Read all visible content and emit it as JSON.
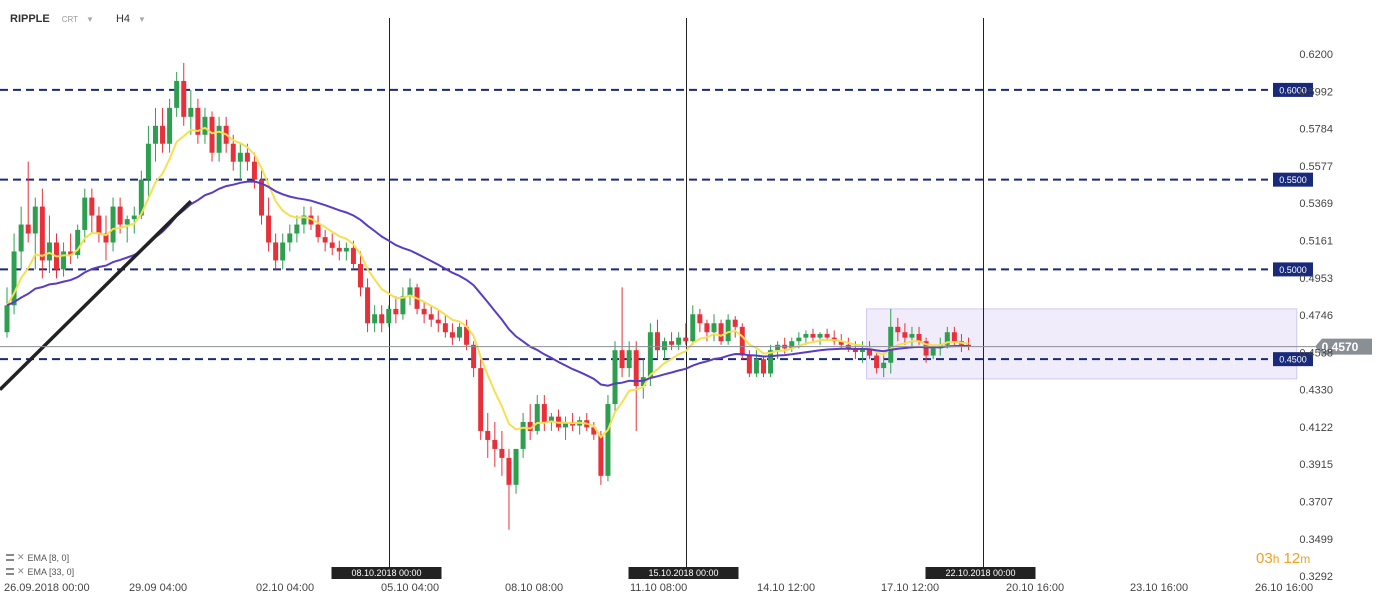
{
  "header": {
    "symbol": "RIPPLE",
    "chart_type": "CRT",
    "timeframe": "H4"
  },
  "indicators": [
    {
      "label": "EMA [8, 0]",
      "color": "#f5e052"
    },
    {
      "label": "EMA [33, 0]",
      "color": "#5b3cc4"
    }
  ],
  "timer": {
    "hours": "03",
    "h_unit": "h",
    "minutes": "12",
    "m_unit": "m"
  },
  "colors": {
    "bull": "#2e9e4f",
    "bear": "#e8303a",
    "level": "#1a2a7a",
    "price_tag": "#8a8f95",
    "consolidation_box": "#e6e0f7"
  },
  "chart_data": {
    "type": "candlestick",
    "instrument": "RIPPLE",
    "timeframe": "H4",
    "ylim": [
      0.3292,
      0.63
    ],
    "y_ticks": [
      "0.6200",
      "0.5992",
      "0.5784",
      "0.5577",
      "0.5369",
      "0.5161",
      "0.4953",
      "0.4746",
      "0.4538",
      "0.4330",
      "0.4122",
      "0.3915",
      "0.3707",
      "0.3499",
      "0.3292"
    ],
    "x_ticks": [
      "26.09.2018  00:00",
      "29.09  04:00",
      "02.10  04:00",
      "05.10  04:00",
      "08.10  08:00",
      "11.10  08:00",
      "14.10  12:00",
      "17.10  12:00",
      "20.10  16:00",
      "23.10  16:00",
      "26.10  16:00"
    ],
    "levels": [
      {
        "label": "0.6000",
        "value": 0.6
      },
      {
        "label": "0.5500",
        "value": 0.55
      },
      {
        "label": "0.5000",
        "value": 0.5
      },
      {
        "label": "0.4500",
        "value": 0.45
      }
    ],
    "current_price": {
      "label": "0.4570",
      "value": 0.457
    },
    "vertical_markers": [
      {
        "label": "08.10.2018 00:00",
        "index": 54
      },
      {
        "label": "15.10.2018 00:00",
        "index": 96
      },
      {
        "label": "22.10.2018 00:00",
        "index": 138
      }
    ],
    "trendline": [
      {
        "index": -1,
        "value": 0.433
      },
      {
        "index": 26,
        "value": 0.538
      }
    ],
    "consolidation_box": {
      "from_index": 122,
      "to_index": 182,
      "low": 0.439,
      "high": 0.478
    },
    "ohlc": [
      [
        0.465,
        0.49,
        0.462,
        0.48
      ],
      [
        0.48,
        0.52,
        0.475,
        0.51
      ],
      [
        0.51,
        0.535,
        0.5,
        0.525
      ],
      [
        0.525,
        0.56,
        0.515,
        0.52
      ],
      [
        0.52,
        0.54,
        0.5,
        0.535
      ],
      [
        0.535,
        0.545,
        0.495,
        0.505
      ],
      [
        0.505,
        0.53,
        0.498,
        0.515
      ],
      [
        0.515,
        0.52,
        0.495,
        0.5
      ],
      [
        0.5,
        0.515,
        0.496,
        0.51
      ],
      [
        0.51,
        0.52,
        0.503,
        0.508
      ],
      [
        0.508,
        0.525,
        0.506,
        0.522
      ],
      [
        0.522,
        0.545,
        0.515,
        0.54
      ],
      [
        0.54,
        0.545,
        0.52,
        0.53
      ],
      [
        0.53,
        0.535,
        0.515,
        0.52
      ],
      [
        0.52,
        0.53,
        0.505,
        0.515
      ],
      [
        0.515,
        0.54,
        0.51,
        0.535
      ],
      [
        0.535,
        0.54,
        0.52,
        0.525
      ],
      [
        0.525,
        0.53,
        0.515,
        0.528
      ],
      [
        0.528,
        0.535,
        0.52,
        0.53
      ],
      [
        0.53,
        0.555,
        0.528,
        0.55
      ],
      [
        0.55,
        0.58,
        0.54,
        0.57
      ],
      [
        0.57,
        0.59,
        0.56,
        0.58
      ],
      [
        0.58,
        0.59,
        0.565,
        0.57
      ],
      [
        0.57,
        0.595,
        0.565,
        0.59
      ],
      [
        0.59,
        0.61,
        0.585,
        0.605
      ],
      [
        0.605,
        0.615,
        0.58,
        0.585
      ],
      [
        0.585,
        0.6,
        0.575,
        0.59
      ],
      [
        0.59,
        0.595,
        0.57,
        0.575
      ],
      [
        0.575,
        0.59,
        0.57,
        0.585
      ],
      [
        0.585,
        0.588,
        0.56,
        0.565
      ],
      [
        0.565,
        0.585,
        0.56,
        0.58
      ],
      [
        0.58,
        0.585,
        0.565,
        0.57
      ],
      [
        0.57,
        0.575,
        0.555,
        0.56
      ],
      [
        0.56,
        0.57,
        0.55,
        0.565
      ],
      [
        0.565,
        0.57,
        0.555,
        0.56
      ],
      [
        0.56,
        0.565,
        0.545,
        0.55
      ],
      [
        0.55,
        0.555,
        0.525,
        0.53
      ],
      [
        0.53,
        0.54,
        0.51,
        0.515
      ],
      [
        0.515,
        0.52,
        0.5,
        0.505
      ],
      [
        0.505,
        0.52,
        0.5,
        0.515
      ],
      [
        0.515,
        0.525,
        0.51,
        0.52
      ],
      [
        0.52,
        0.53,
        0.515,
        0.525
      ],
      [
        0.525,
        0.535,
        0.52,
        0.53
      ],
      [
        0.53,
        0.535,
        0.522,
        0.525
      ],
      [
        0.525,
        0.53,
        0.515,
        0.518
      ],
      [
        0.518,
        0.522,
        0.51,
        0.515
      ],
      [
        0.515,
        0.52,
        0.508,
        0.512
      ],
      [
        0.512,
        0.516,
        0.505,
        0.51
      ],
      [
        0.51,
        0.515,
        0.505,
        0.512
      ],
      [
        0.512,
        0.516,
        0.5,
        0.503
      ],
      [
        0.503,
        0.51,
        0.485,
        0.49
      ],
      [
        0.49,
        0.495,
        0.465,
        0.47
      ],
      [
        0.47,
        0.48,
        0.465,
        0.475
      ],
      [
        0.475,
        0.48,
        0.465,
        0.47
      ],
      [
        0.47,
        0.48,
        0.468,
        0.478
      ],
      [
        0.478,
        0.485,
        0.47,
        0.475
      ],
      [
        0.475,
        0.49,
        0.472,
        0.485
      ],
      [
        0.485,
        0.495,
        0.48,
        0.49
      ],
      [
        0.49,
        0.492,
        0.475,
        0.478
      ],
      [
        0.478,
        0.482,
        0.47,
        0.475
      ],
      [
        0.475,
        0.48,
        0.468,
        0.472
      ],
      [
        0.472,
        0.478,
        0.465,
        0.47
      ],
      [
        0.47,
        0.475,
        0.462,
        0.465
      ],
      [
        0.465,
        0.47,
        0.458,
        0.462
      ],
      [
        0.462,
        0.47,
        0.46,
        0.468
      ],
      [
        0.468,
        0.472,
        0.455,
        0.458
      ],
      [
        0.458,
        0.46,
        0.44,
        0.445
      ],
      [
        0.445,
        0.45,
        0.405,
        0.41
      ],
      [
        0.41,
        0.42,
        0.395,
        0.405
      ],
      [
        0.405,
        0.415,
        0.39,
        0.4
      ],
      [
        0.4,
        0.41,
        0.385,
        0.395
      ],
      [
        0.395,
        0.4,
        0.355,
        0.38
      ],
      [
        0.38,
        0.4,
        0.375,
        0.4
      ],
      [
        0.4,
        0.42,
        0.395,
        0.415
      ],
      [
        0.415,
        0.425,
        0.405,
        0.41
      ],
      [
        0.41,
        0.43,
        0.408,
        0.425
      ],
      [
        0.425,
        0.43,
        0.41,
        0.415
      ],
      [
        0.415,
        0.42,
        0.41,
        0.418
      ],
      [
        0.418,
        0.422,
        0.41,
        0.412
      ],
      [
        0.412,
        0.418,
        0.405,
        0.415
      ],
      [
        0.415,
        0.42,
        0.41,
        0.413
      ],
      [
        0.413,
        0.418,
        0.408,
        0.416
      ],
      [
        0.416,
        0.42,
        0.41,
        0.412
      ],
      [
        0.412,
        0.415,
        0.405,
        0.408
      ],
      [
        0.408,
        0.41,
        0.38,
        0.385
      ],
      [
        0.385,
        0.43,
        0.382,
        0.425
      ],
      [
        0.425,
        0.46,
        0.42,
        0.455
      ],
      [
        0.455,
        0.49,
        0.44,
        0.445
      ],
      [
        0.445,
        0.46,
        0.44,
        0.455
      ],
      [
        0.455,
        0.46,
        0.41,
        0.435
      ],
      [
        0.435,
        0.45,
        0.428,
        0.44
      ],
      [
        0.44,
        0.47,
        0.435,
        0.465
      ],
      [
        0.465,
        0.472,
        0.45,
        0.455
      ],
      [
        0.455,
        0.462,
        0.45,
        0.46
      ],
      [
        0.46,
        0.465,
        0.455,
        0.458
      ],
      [
        0.458,
        0.465,
        0.455,
        0.462
      ],
      [
        0.462,
        0.47,
        0.458,
        0.46
      ],
      [
        0.46,
        0.48,
        0.458,
        0.475
      ],
      [
        0.475,
        0.478,
        0.465,
        0.47
      ],
      [
        0.47,
        0.472,
        0.46,
        0.465
      ],
      [
        0.465,
        0.475,
        0.46,
        0.47
      ],
      [
        0.47,
        0.472,
        0.458,
        0.46
      ],
      [
        0.46,
        0.475,
        0.458,
        0.472
      ],
      [
        0.472,
        0.474,
        0.462,
        0.468
      ],
      [
        0.468,
        0.47,
        0.45,
        0.452
      ],
      [
        0.452,
        0.455,
        0.44,
        0.442
      ],
      [
        0.442,
        0.455,
        0.44,
        0.45
      ],
      [
        0.45,
        0.452,
        0.44,
        0.442
      ],
      [
        0.442,
        0.458,
        0.44,
        0.455
      ],
      [
        0.455,
        0.46,
        0.45,
        0.458
      ],
      [
        0.458,
        0.462,
        0.453,
        0.456
      ],
      [
        0.456,
        0.462,
        0.454,
        0.46
      ],
      [
        0.46,
        0.465,
        0.456,
        0.462
      ],
      [
        0.462,
        0.466,
        0.458,
        0.464
      ],
      [
        0.464,
        0.467,
        0.46,
        0.462
      ],
      [
        0.462,
        0.465,
        0.458,
        0.464
      ],
      [
        0.464,
        0.467,
        0.46,
        0.462
      ],
      [
        0.462,
        0.466,
        0.458,
        0.46
      ],
      [
        0.46,
        0.464,
        0.456,
        0.458
      ],
      [
        0.458,
        0.462,
        0.454,
        0.456
      ],
      [
        0.456,
        0.46,
        0.45,
        0.454
      ],
      [
        0.454,
        0.46,
        0.448,
        0.456
      ],
      [
        0.456,
        0.46,
        0.45,
        0.452
      ],
      [
        0.452,
        0.455,
        0.442,
        0.445
      ],
      [
        0.445,
        0.452,
        0.44,
        0.448
      ],
      [
        0.448,
        0.478,
        0.442,
        0.468
      ],
      [
        0.468,
        0.473,
        0.46,
        0.465
      ],
      [
        0.465,
        0.47,
        0.458,
        0.462
      ],
      [
        0.462,
        0.468,
        0.456,
        0.464
      ],
      [
        0.464,
        0.468,
        0.458,
        0.46
      ],
      [
        0.46,
        0.462,
        0.448,
        0.452
      ],
      [
        0.452,
        0.458,
        0.45,
        0.456
      ],
      [
        0.456,
        0.462,
        0.452,
        0.458
      ],
      [
        0.458,
        0.468,
        0.456,
        0.465
      ],
      [
        0.465,
        0.468,
        0.458,
        0.46
      ],
      [
        0.46,
        0.464,
        0.454,
        0.458
      ],
      [
        0.458,
        0.462,
        0.455,
        0.457
      ]
    ]
  }
}
